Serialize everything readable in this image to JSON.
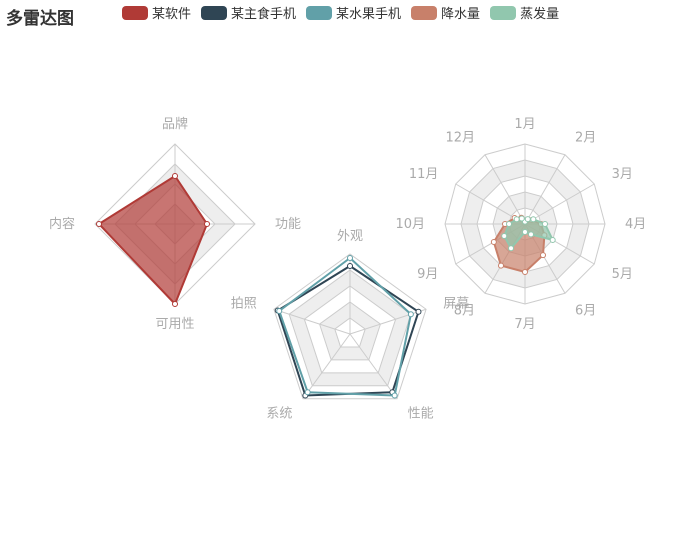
{
  "title": "多雷达图",
  "legend": [
    {
      "label": "某软件",
      "color": "#b03a36"
    },
    {
      "label": "某主食手机",
      "color": "#2f4554"
    },
    {
      "label": "某水果手机",
      "color": "#61a0a8"
    },
    {
      "label": "降水量",
      "color": "#c8806a"
    },
    {
      "label": "蒸发量",
      "color": "#91c7ae"
    }
  ],
  "chart_data": [
    {
      "type": "radar",
      "indicators": [
        {
          "name": "品牌",
          "max": 100
        },
        {
          "name": "功能",
          "max": 100
        },
        {
          "name": "可用性",
          "max": 100
        },
        {
          "name": "内容",
          "max": 100
        }
      ],
      "series": [
        {
          "name": "某软件",
          "values": [
            60,
            40,
            100,
            95
          ],
          "color": "#b03a36"
        }
      ]
    },
    {
      "type": "radar",
      "indicators": [
        {
          "name": "外观",
          "max": 100
        },
        {
          "name": "屏幕",
          "max": 100
        },
        {
          "name": "性能",
          "max": 100
        },
        {
          "name": "系统",
          "max": 100
        },
        {
          "name": "拍照",
          "max": 100
        }
      ],
      "series": [
        {
          "name": "某主食手机",
          "values": [
            85,
            90,
            90,
            95,
            95
          ],
          "color": "#2f4554"
        },
        {
          "name": "某水果手机",
          "values": [
            95,
            80,
            95,
            90,
            93
          ],
          "color": "#61a0a8"
        }
      ]
    },
    {
      "type": "radar",
      "indicators": [
        {
          "name": "1月",
          "max": 100
        },
        {
          "name": "12月",
          "max": 100
        },
        {
          "name": "11月",
          "max": 100
        },
        {
          "name": "10月",
          "max": 100
        },
        {
          "name": "9月",
          "max": 100
        },
        {
          "name": "8月",
          "max": 100
        },
        {
          "name": "7月",
          "max": 100
        },
        {
          "name": "6月",
          "max": 100
        },
        {
          "name": "5月",
          "max": 100
        },
        {
          "name": "4月",
          "max": 100
        },
        {
          "name": "3月",
          "max": 100
        },
        {
          "name": "2月",
          "max": 100
        }
      ],
      "series": [
        {
          "name": "降水量",
          "values": [
            3,
            9,
            15,
            25,
            45,
            60,
            60,
            45,
            28,
            20,
            10,
            5
          ],
          "color": "#c8806a"
        },
        {
          "name": "蒸发量",
          "values": [
            3,
            8,
            12,
            20,
            30,
            35,
            10,
            15,
            40,
            25,
            12,
            7
          ],
          "color": "#91c7ae"
        }
      ]
    }
  ]
}
